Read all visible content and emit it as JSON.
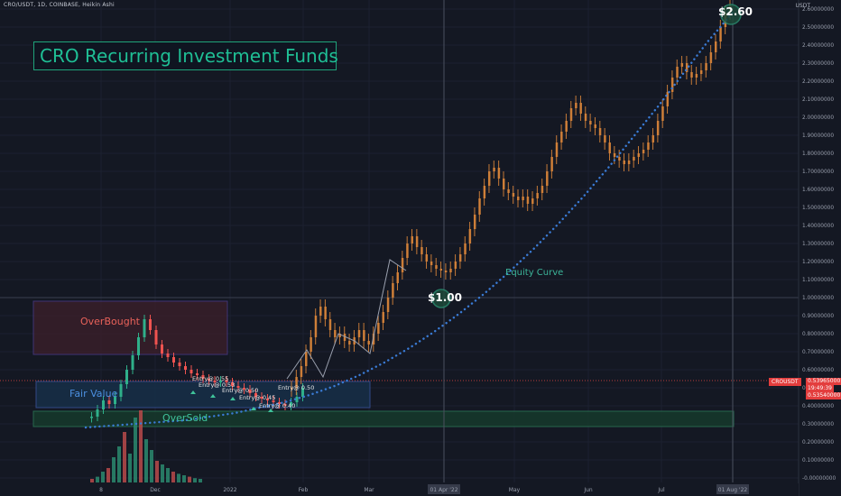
{
  "header": {
    "symbol_line": "CRO/USDT, 1D, COINBASE, Heikin Ashi",
    "axis_unit": "USDT"
  },
  "title": "CRO Recurring Investment Funds",
  "zones": {
    "overbought": "OverBought",
    "fair_value": "Fair Value",
    "oversold": "OverSold"
  },
  "annotations": {
    "equity_curve": "Equity Curve",
    "start_price": "$1.00",
    "target_price": "$2.60",
    "entries": [
      "Entry@ 0.55",
      "Entry@ 0.53",
      "Entry@ 0.50",
      "Entry@ 0.45",
      "Entry@ 0.40",
      "Entry@ 0.50"
    ]
  },
  "price_tag": {
    "symbol": "CROUSDT",
    "price": "0.53965000",
    "countdown": "19:49:39",
    "low": "0.53540000"
  },
  "colors": {
    "background": "#141823",
    "bull_candle": "#2fb08a",
    "bear_candle": "#ef5350",
    "projection": "#d8843a",
    "equity_curve": "#3a7bd5",
    "overbought_zone": "#3a1f2a",
    "fair_zone": "#17304a",
    "oversold_zone": "#163b2c"
  },
  "chart_data": {
    "type": "line",
    "ylim": [
      0,
      2.6
    ],
    "y_ticks": [
      "2.60000000",
      "2.50000000",
      "2.40000000",
      "2.30000000",
      "2.20000000",
      "2.10000000",
      "2.00000000",
      "1.90000000",
      "1.80000000",
      "1.70000000",
      "1.60000000",
      "1.50000000",
      "1.40000000",
      "1.30000000",
      "1.20000000",
      "1.10000000",
      "1.00000000",
      "0.90000000",
      "0.80000000",
      "0.70000000",
      "0.60000000",
      "0.50000000",
      "0.40000000",
      "0.30000000",
      "0.20000000",
      "0.10000000",
      "-0.00000000"
    ],
    "x_ticks": [
      "8",
      "Dec",
      "2022",
      "Feb",
      "Mar",
      "01 Apr '22",
      "May",
      "Jun",
      "Jul",
      "01 Aug '22"
    ],
    "series": [
      {
        "values": [
          0.34,
          0.38,
          0.43,
          0.41,
          0.45,
          0.52,
          0.6,
          0.68,
          0.78,
          0.88,
          0.82,
          0.74,
          0.69,
          0.67,
          0.64,
          0.62,
          0.6,
          0.58,
          0.57,
          0.55,
          0.54,
          0.53,
          0.54,
          0.53,
          0.51,
          0.5,
          0.49,
          0.47,
          0.45,
          0.44,
          0.43,
          0.42,
          0.41,
          0.4,
          0.42,
          0.45,
          0.5
        ]
      },
      {
        "values": [
          0.5,
          0.56,
          0.62,
          0.7,
          0.78,
          0.9,
          0.95,
          0.88,
          0.82,
          0.78,
          0.8,
          0.76,
          0.74,
          0.78,
          0.82,
          0.76,
          0.74,
          0.8,
          0.86,
          0.92,
          1.0,
          1.08,
          1.14,
          1.22,
          1.3,
          1.34,
          1.28,
          1.24,
          1.2,
          1.18,
          1.16,
          1.15,
          1.14,
          1.16,
          1.2,
          1.24,
          1.3,
          1.38,
          1.46,
          1.55,
          1.62,
          1.7,
          1.72,
          1.66,
          1.6,
          1.58,
          1.56,
          1.54,
          1.56,
          1.52,
          1.55,
          1.58,
          1.62,
          1.7,
          1.78,
          1.86,
          1.92,
          1.98,
          2.05,
          2.08,
          2.02,
          1.98,
          1.96,
          1.94,
          1.9,
          1.86,
          1.8,
          1.78,
          1.76,
          1.74,
          1.76,
          1.78,
          1.8,
          1.82,
          1.86,
          1.9,
          1.98,
          2.06,
          2.14,
          2.22,
          2.28,
          2.3,
          2.25,
          2.22,
          2.24,
          2.26,
          2.3,
          2.36,
          2.42,
          2.5,
          2.58,
          2.62
        ]
      },
      {
        "values": [
          0.28,
          0.29,
          0.3,
          0.31,
          0.32,
          0.34,
          0.36,
          0.39,
          0.42,
          0.46,
          0.51,
          0.57,
          0.64,
          0.72,
          0.81,
          0.91,
          1.02,
          1.14,
          1.27,
          1.41,
          1.56,
          1.72,
          1.89,
          2.06,
          2.24,
          2.42,
          2.58
        ]
      }
    ],
    "volume": [
      0.05,
      0.08,
      0.15,
      0.2,
      0.35,
      0.5,
      0.7,
      0.4,
      0.9,
      1.0,
      0.6,
      0.45,
      0.3,
      0.25,
      0.2,
      0.15,
      0.12,
      0.1,
      0.08,
      0.06,
      0.05
    ]
  }
}
